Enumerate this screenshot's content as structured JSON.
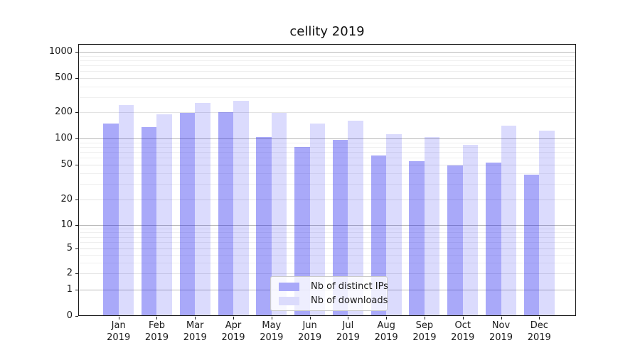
{
  "chart_data": {
    "type": "bar",
    "title": "cellity 2019",
    "x": [
      "Jan",
      "Feb",
      "Mar",
      "Apr",
      "May",
      "Jun",
      "Jul",
      "Aug",
      "Sep",
      "Oct",
      "Nov",
      "Dec"
    ],
    "x_year": "2019",
    "series": [
      {
        "name": "Nb of distinct IPs",
        "color": "#a9a9f9",
        "values": [
          150,
          135,
          196,
          202,
          103,
          79,
          96,
          64,
          55,
          49,
          53,
          38
        ]
      },
      {
        "name": "Nb of downloads",
        "color": "#dbdbfc",
        "values": [
          242,
          190,
          256,
          274,
          196,
          149,
          161,
          113,
          104,
          84,
          141,
          123
        ]
      }
    ],
    "xlabel": "",
    "ylabel": "",
    "yscale": "symlog",
    "yticks": [
      0,
      1,
      2,
      5,
      10,
      20,
      50,
      100,
      200,
      500,
      1000
    ],
    "ylim": [
      0,
      1250
    ],
    "grid": true,
    "legend_position": "lower center"
  }
}
